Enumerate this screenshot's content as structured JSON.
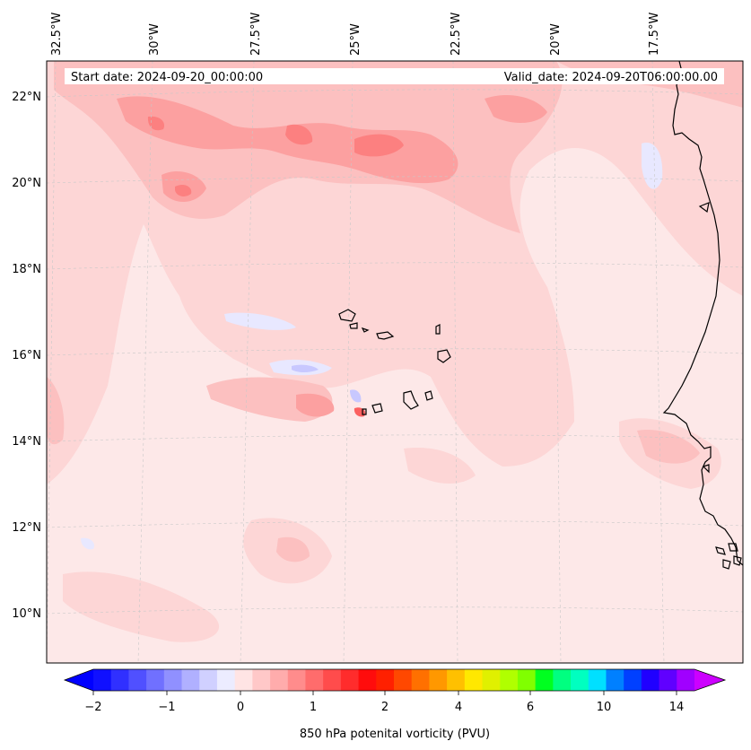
{
  "map": {
    "start_date": "Start date: 2024-09-20_00:00:00",
    "valid_date": "Valid_date: 2024-09-20T06:00:00.00",
    "lon_labels": [
      "32.5°W",
      "30°W",
      "27.5°W",
      "25°W",
      "22.5°W",
      "20°W",
      "17.5°W"
    ],
    "lat_labels": [
      "22°N",
      "20°N",
      "18°N",
      "16°N",
      "14°N",
      "12°N",
      "10°N"
    ],
    "background_color": "#fde8e8",
    "gridlines": true,
    "coastline_color": "#000000"
  },
  "colorbar": {
    "label": "850 hPa potenital vorticity (PVU)",
    "tick_labels": [
      "−2",
      "−1",
      "0",
      "1",
      "2",
      "4",
      "6",
      "10",
      "14"
    ],
    "extend": "both",
    "under_color": "#0000ff",
    "over_color": "#cc00ff",
    "colors": [
      "#1010ff",
      "#3030ff",
      "#5050ff",
      "#7070ff",
      "#9090ff",
      "#b0b0ff",
      "#d0d0ff",
      "#ececff",
      "#ffe4e4",
      "#ffc8c8",
      "#ffacac",
      "#ff8c8c",
      "#ff6c6c",
      "#ff4c4c",
      "#ff2c2c",
      "#ff0c0c",
      "#ff2000",
      "#ff4800",
      "#ff7000",
      "#ff9800",
      "#ffc000",
      "#ffe800",
      "#e0f000",
      "#b0ff00",
      "#80ff00",
      "#00ff20",
      "#00ff80",
      "#00ffc0",
      "#00e0ff",
      "#0080ff",
      "#0040ff",
      "#2000ff",
      "#6000ff",
      "#a000ff"
    ]
  }
}
